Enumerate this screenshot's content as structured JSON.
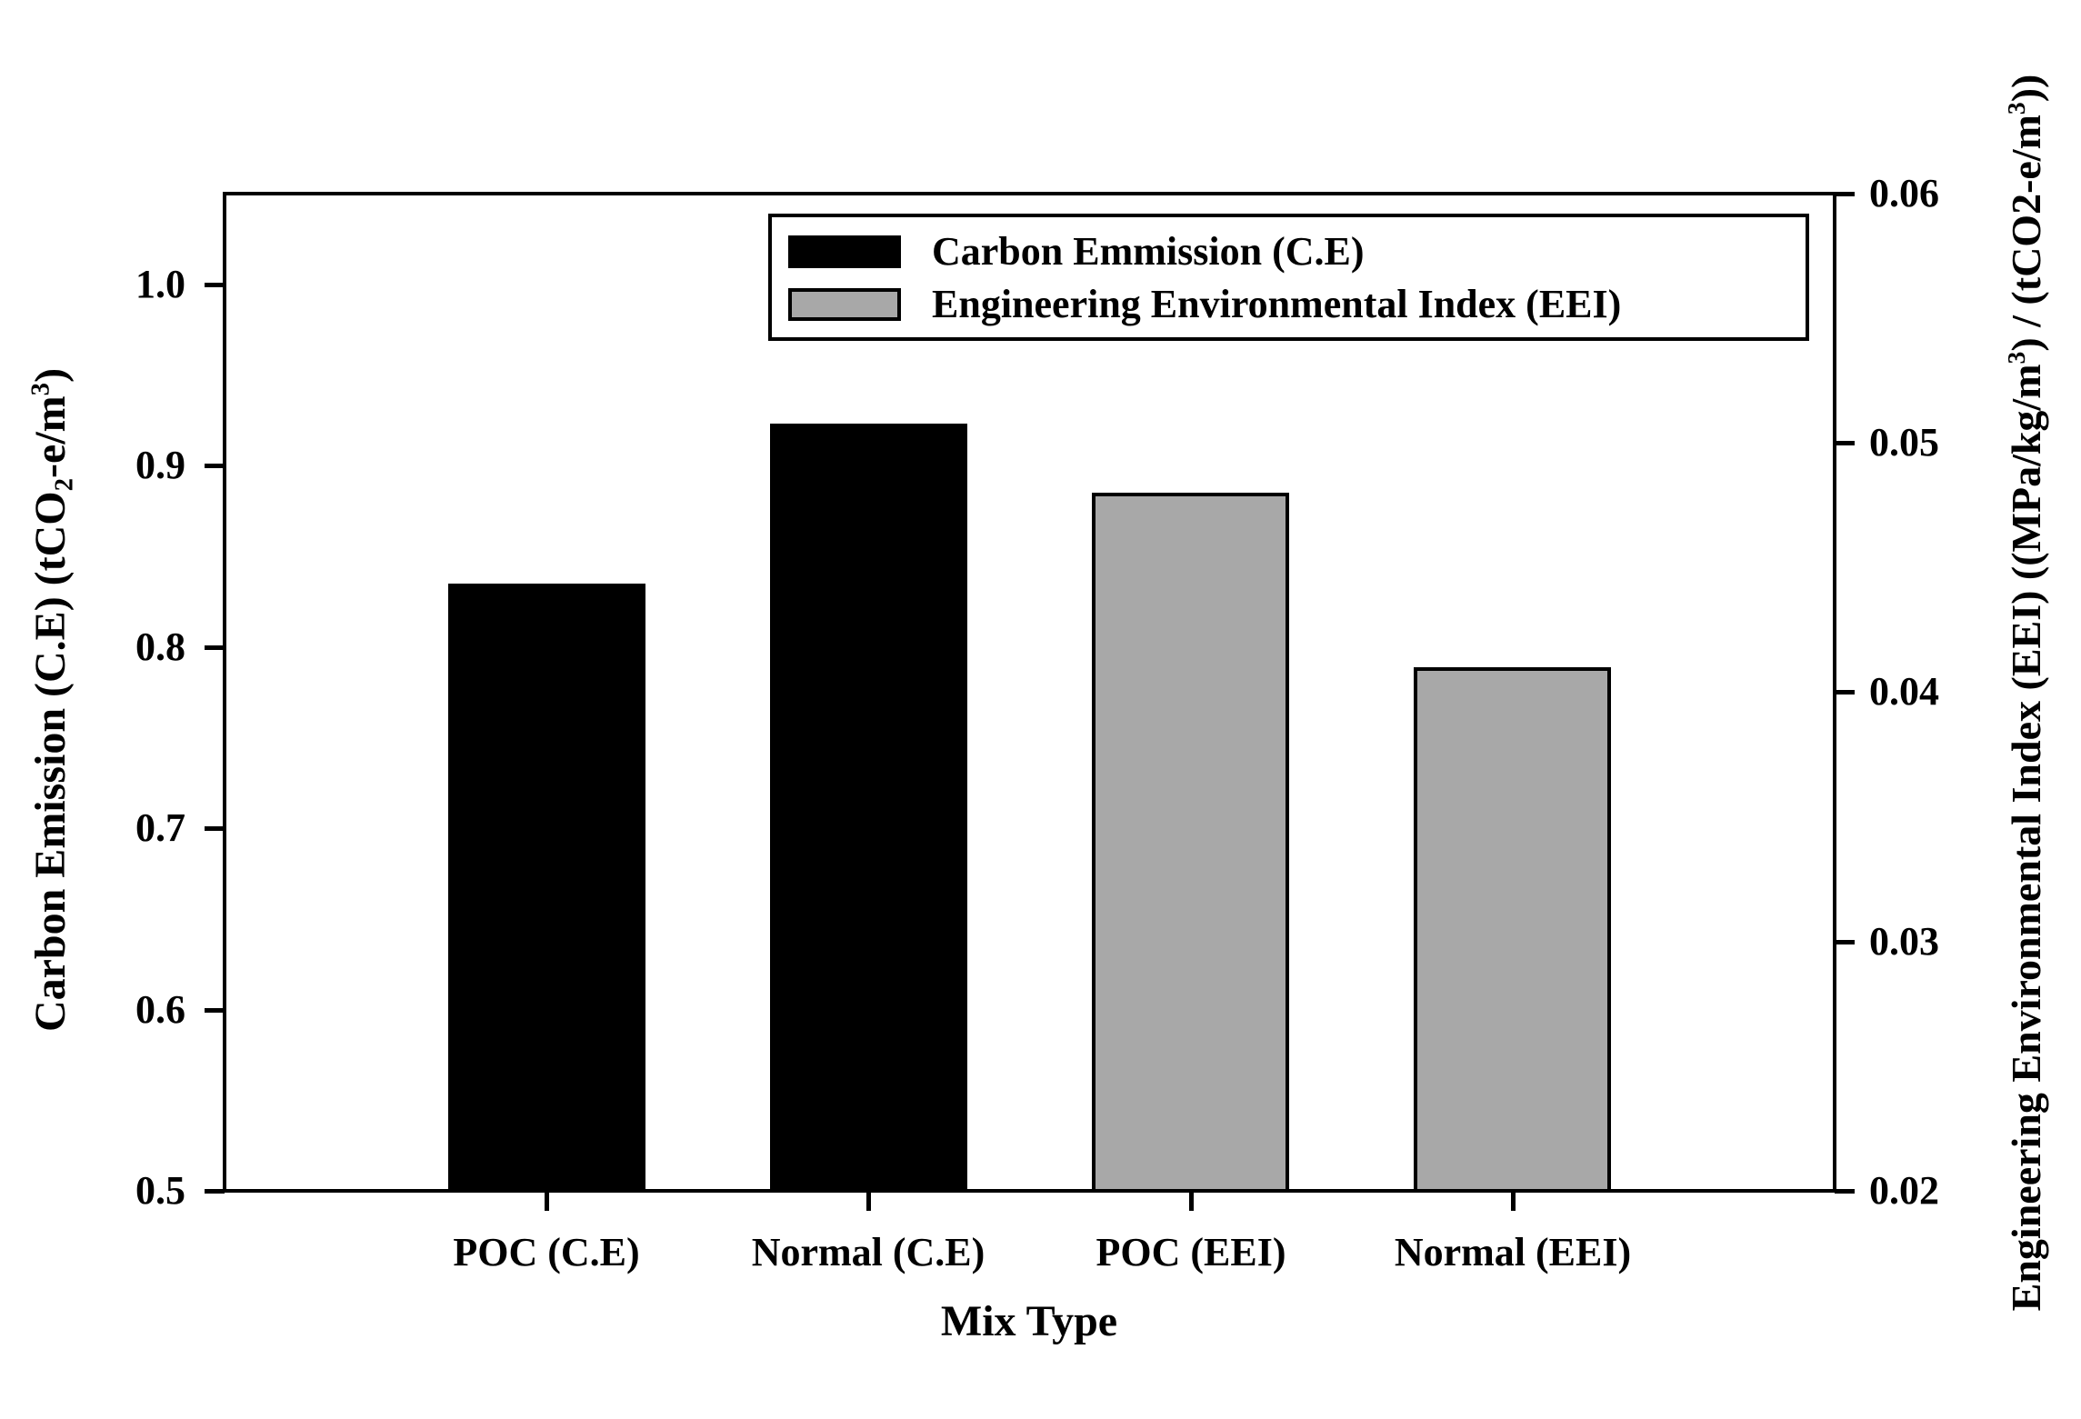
{
  "chart_data": {
    "type": "bar",
    "title": "",
    "xlabel": "Mix Type",
    "categories": [
      "POC (C.E)",
      "Normal (C.E)",
      "POC (EEI)",
      "Normal (EEI)"
    ],
    "bars": [
      {
        "category": "POC (C.E)",
        "value": 0.835,
        "axis": "left",
        "color": "#000000"
      },
      {
        "category": "Normal (C.E)",
        "value": 0.923,
        "axis": "left",
        "color": "#000000"
      },
      {
        "category": "POC (EEI)",
        "value": 0.048,
        "axis": "right",
        "color": "#a8a8a8"
      },
      {
        "category": "Normal (EEI)",
        "value": 0.041,
        "axis": "right",
        "color": "#a8a8a8"
      }
    ],
    "left_axis": {
      "label_parts": [
        {
          "t": "Carbon Emission (C.E) (tCO"
        },
        {
          "t": "2",
          "style": "sub"
        },
        {
          "t": "-e/m"
        },
        {
          "t": "3",
          "style": "sup"
        },
        {
          "t": ")"
        }
      ],
      "ticks": [
        "1.0",
        "0.9",
        "0.8",
        "0.7",
        "0.6",
        "0.5"
      ],
      "range": [
        0.5,
        1.05
      ]
    },
    "right_axis": {
      "label_parts": [
        {
          "t": "Engineering Environmental Index (EEI) ((MPa/kg/m"
        },
        {
          "t": "3",
          "style": "sup"
        },
        {
          "t": ") / (tCO2-e/m"
        },
        {
          "t": "3",
          "style": "sup"
        },
        {
          "t": "))"
        }
      ],
      "ticks": [
        "0.06",
        "0.05",
        "0.04",
        "0.03",
        "0.02"
      ],
      "range": [
        0.02,
        0.06
      ]
    },
    "legend": [
      {
        "label": "Carbon Emmission (C.E)",
        "color": "#000000"
      },
      {
        "label": "Engineering Environmental Index (EEI)",
        "color": "#a8a8a8"
      }
    ],
    "grid": false,
    "legend_position": "top-center"
  },
  "colors": {
    "axis": "#000000",
    "background": "#ffffff"
  }
}
